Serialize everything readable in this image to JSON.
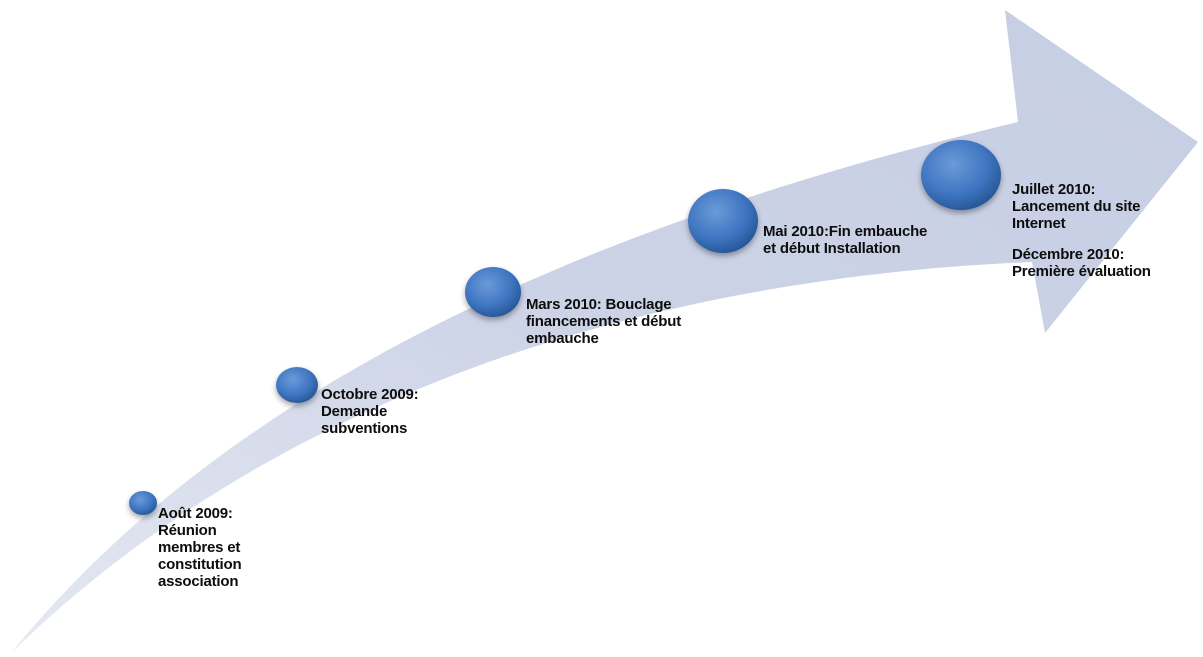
{
  "timeline": {
    "milestones": [
      {
        "lines": [
          "Août 2009:",
          "Réunion",
          "membres et",
          "constitution",
          "association"
        ]
      },
      {
        "lines": [
          "Octobre 2009:",
          "Demande",
          "subventions"
        ]
      },
      {
        "lines": [
          "Mars 2010: Bouclage",
          "financements et début",
          "embauche"
        ]
      },
      {
        "lines": [
          "Mai 2010:Fin embauche",
          "et début Installation"
        ]
      },
      {
        "lines": [
          "Juillet 2010:",
          "Lancement du site",
          "Internet"
        ]
      }
    ],
    "extra_note": {
      "lines": [
        "Décembre 2010:",
        "Première évaluation"
      ]
    },
    "colors": {
      "arrow_fill": "#ccd3e6",
      "circle_fill": "#3f76c2",
      "circle_edge": "#1d4f93"
    }
  }
}
